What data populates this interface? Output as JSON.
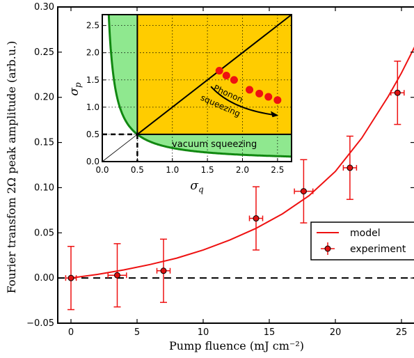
{
  "chart_data": [
    {
      "type": "scatter",
      "xlabel": "Pump fluence (mJ cm⁻²)",
      "ylabel": "Fourier transfom 2Ω peak amplitude (arb.u.)",
      "xlim": [
        -1,
        26
      ],
      "ylim": [
        -0.05,
        0.3
      ],
      "xticks": [
        0,
        5,
        10,
        15,
        20,
        25
      ],
      "yticks": [
        -0.05,
        0.0,
        0.05,
        0.1,
        0.15,
        0.2,
        0.25,
        0.3
      ],
      "ytick_labels": [
        "−0.05",
        "0.00",
        "0.05",
        "0.10",
        "0.15",
        "0.20",
        "0.25",
        "0.30"
      ],
      "reference_line": {
        "y": 0,
        "style": "dashed",
        "color": "#000000"
      },
      "legend": {
        "placement": "right",
        "entries": [
          "model",
          "experiment"
        ]
      },
      "series": [
        {
          "name": "model",
          "kind": "line",
          "color": "#ee1111",
          "x": [
            0,
            2,
            4,
            6,
            8,
            10,
            12,
            14,
            16,
            18,
            20,
            22,
            24,
            25,
            26
          ],
          "y": [
            0.0,
            0.004,
            0.009,
            0.015,
            0.022,
            0.031,
            0.042,
            0.055,
            0.071,
            0.091,
            0.118,
            0.155,
            0.201,
            0.227,
            0.256
          ]
        },
        {
          "name": "experiment",
          "kind": "errorbar",
          "color": "#ee1111",
          "marker_fill": "#dd1111",
          "x": [
            0.0,
            3.5,
            7.0,
            14.0,
            17.6,
            21.1,
            24.7
          ],
          "y": [
            0.0,
            0.003,
            0.008,
            0.066,
            0.096,
            0.122,
            0.205
          ],
          "yerr": [
            0.035,
            0.035,
            0.035,
            0.035,
            0.035,
            0.035,
            0.035
          ],
          "xerr": [
            0.4,
            0.7,
            0.5,
            0.5,
            0.7,
            0.5,
            0.5
          ]
        }
      ]
    },
    {
      "type": "scatter",
      "role": "inset",
      "xlabel": "σq",
      "ylabel": "σp",
      "xlim": [
        0,
        2.7
      ],
      "ylim": [
        0,
        2.7
      ],
      "xticks": [
        0.0,
        0.5,
        1.0,
        1.5,
        2.0,
        2.5
      ],
      "yticks": [
        0.0,
        0.5,
        1.0,
        1.5,
        2.0,
        2.5
      ],
      "grid": true,
      "regions": {
        "squeezed_fill": "#8fe88f",
        "thermal_fill": "#ffcc00",
        "boundary_color": "#118811"
      },
      "points_color": "#ee1111",
      "points": [
        {
          "x": 1.67,
          "y": 1.67
        },
        {
          "x": 1.77,
          "y": 1.58
        },
        {
          "x": 1.88,
          "y": 1.5
        },
        {
          "x": 2.1,
          "y": 1.32
        },
        {
          "x": 2.24,
          "y": 1.25
        },
        {
          "x": 2.37,
          "y": 1.19
        },
        {
          "x": 2.5,
          "y": 1.13
        }
      ],
      "annotations": {
        "phonon": "Phonon",
        "squeezing": "squeezing",
        "vacuum": "vacuum squeezing"
      },
      "arrow": {
        "from": [
          1.55,
          1.38
        ],
        "to": [
          2.5,
          0.85
        ]
      }
    }
  ]
}
